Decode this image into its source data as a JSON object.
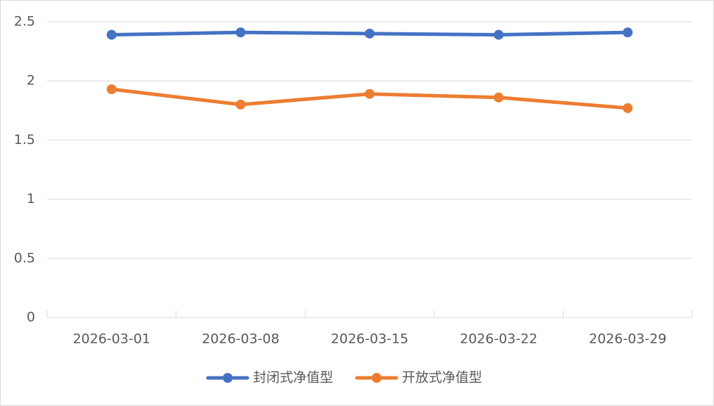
{
  "chart_data": {
    "type": "line",
    "categories": [
      "2026-03-01",
      "2026-03-08",
      "2026-03-15",
      "2026-03-22",
      "2026-03-29"
    ],
    "series": [
      {
        "name": "封闭式净值型",
        "color": "#4472c4",
        "values": [
          2.39,
          2.41,
          2.4,
          2.39,
          2.41
        ]
      },
      {
        "name": "开放式净值型",
        "color": "#ed7d31",
        "values": [
          1.93,
          1.8,
          1.89,
          1.86,
          1.77
        ]
      }
    ],
    "ylim": [
      0,
      2.5
    ],
    "yticks": [
      0,
      0.5,
      1,
      1.5,
      2,
      2.5
    ],
    "grid": true,
    "legend": "bottom"
  }
}
